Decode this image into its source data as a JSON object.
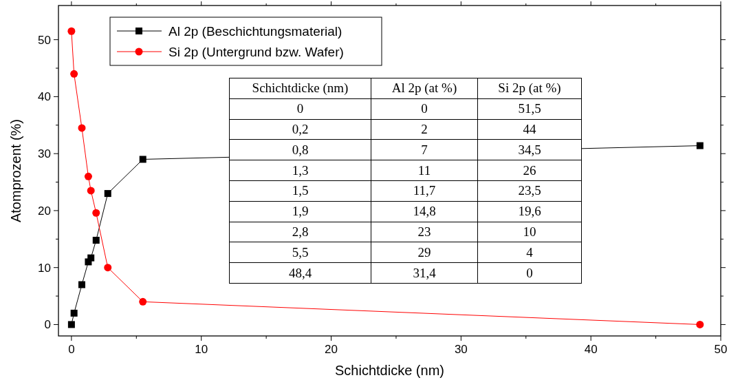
{
  "chart_data": {
    "type": "line",
    "xlabel": "Schichtdicke (nm)",
    "ylabel": "Atomprozent (%)",
    "x": [
      0,
      0.2,
      0.8,
      1.3,
      1.5,
      1.9,
      2.8,
      5.5,
      48.4
    ],
    "series": [
      {
        "name": "Al 2p (Beschichtungsmaterial)",
        "color": "#000000",
        "marker": "square",
        "values": [
          0,
          2,
          7,
          11,
          11.7,
          14.8,
          23,
          29,
          31.4
        ]
      },
      {
        "name": "Si 2p (Untergrund bzw. Wafer)",
        "color": "#ff0000",
        "marker": "circle",
        "values": [
          51.5,
          44,
          34.5,
          26,
          23.5,
          19.6,
          10,
          4,
          0
        ]
      }
    ],
    "xlim": [
      -1,
      50
    ],
    "xticks": [
      0,
      {
        "value": 5,
        "label": null
      },
      10,
      {
        "value": 15,
        "label": null
      },
      20,
      {
        "value": 25,
        "label": null
      },
      30,
      {
        "value": 35,
        "label": null
      },
      40,
      {
        "value": 45,
        "label": null
      },
      50
    ],
    "ylim": [
      -2,
      56
    ],
    "yticks": [
      0,
      {
        "value": 5,
        "label": null
      },
      10,
      {
        "value": 15,
        "label": null
      },
      20,
      {
        "value": 25,
        "label": null
      },
      30,
      {
        "value": 35,
        "label": null
      },
      40,
      {
        "value": 45,
        "label": null
      },
      50
    ],
    "legend": "top left",
    "annotations": [
      "Schichtdicke (nm)",
      "Al 2p (at %)",
      "Si 2p (at %)",
      "0",
      "0",
      "51,5",
      "0,2",
      "2",
      "44",
      "0,8",
      "7",
      "34,5",
      "1,3",
      "11",
      "26",
      "1,5",
      "11,7",
      "23,5",
      "1,9",
      "14,8",
      "19,6",
      "2,8",
      "23",
      "10",
      "5,5",
      "29",
      "4",
      "48,4",
      "31,4",
      "0"
    ]
  }
}
